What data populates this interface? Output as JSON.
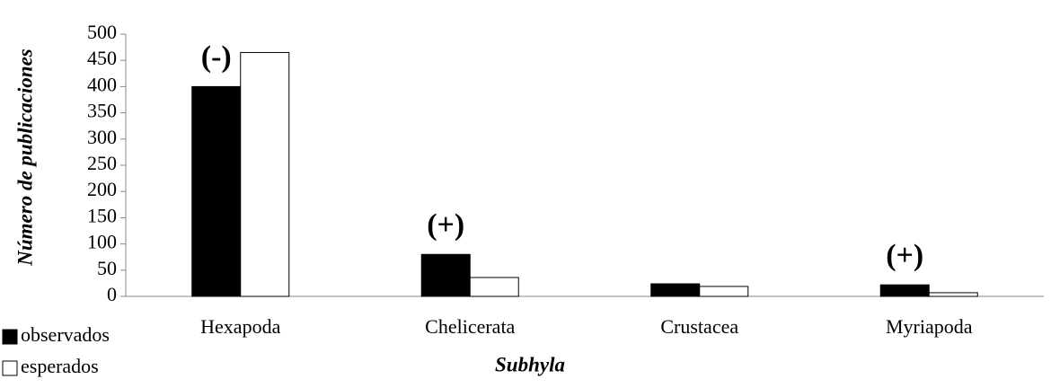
{
  "chart_data": {
    "type": "bar",
    "x_label": "Subhyla",
    "y_label": "Número de publicaciones",
    "categories": [
      "Hexapoda",
      "Chelicerata",
      "Crustacea",
      "Myriapoda"
    ],
    "series": [
      {
        "name": "observados",
        "color": "#000000",
        "values": [
          400,
          80,
          24,
          22
        ]
      },
      {
        "name": "esperados",
        "color": "#ffffff",
        "values": [
          465,
          36,
          19,
          7
        ]
      }
    ],
    "annotations": [
      "(-)",
      "(+)",
      null,
      "(+)"
    ],
    "ylim": [
      0,
      500
    ],
    "yticks": [
      0,
      50,
      100,
      150,
      200,
      250,
      300,
      350,
      400,
      450,
      500
    ],
    "grid": false,
    "legend": "bottom-left"
  }
}
